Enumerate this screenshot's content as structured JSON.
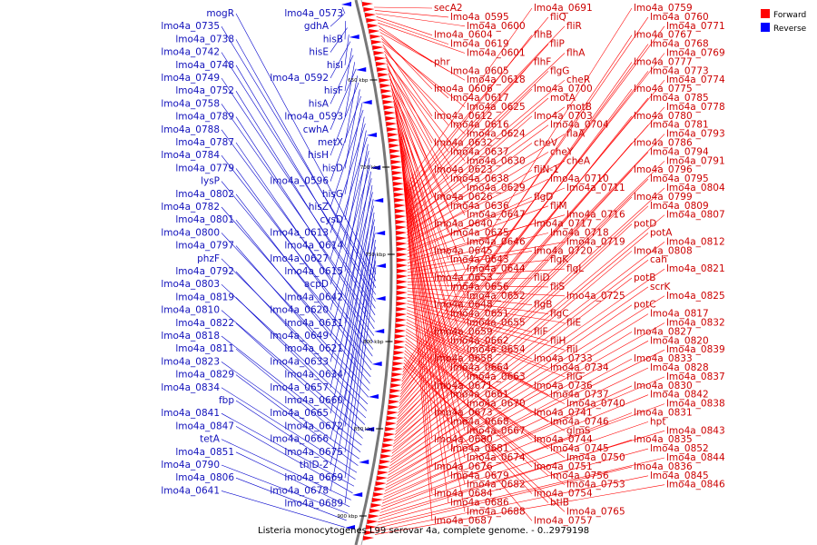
{
  "legend": [
    {
      "name": "Forward",
      "color": "#ff0000"
    },
    {
      "name": "Reverse",
      "color": "#0000ff"
    }
  ],
  "caption": "Listeria monocytogenes L99 serovar 4a, complete genome. - 0..2979198",
  "ticks": [
    "650 kbp",
    "700 kbp",
    "750 kbp",
    "800 kbp",
    "850 kbp",
    "900 kbp"
  ],
  "forward_labels": [
    "secA2",
    "lmo4a_0595",
    "lmo4a_0600",
    "lmo4a_0604",
    "lmo4a_0619",
    "lmo4a_0601",
    "phr",
    "lmo4a_0605",
    "lmo4a_0618",
    "lmo4a_0606",
    "lmo4a_0617",
    "lmo4a_0625",
    "lmo4a_0612",
    "lmo4a_0616",
    "lmo4a_0624",
    "lmo4a_0632",
    "lmo4a_0637",
    "lmo4a_0630",
    "lmo4a_0623",
    "lmo4a_0638",
    "lmo4a_0629",
    "lmo4a_0626",
    "lmo4a_0636",
    "lmo4a_0647",
    "lmo4a_0640",
    "lmo4a_0635",
    "lmo4a_0646",
    "lmo4a_0645",
    "lmo4a_0643",
    "lmo4a_0644",
    "lmo4a_0653",
    "lmo4a_0656",
    "lmo4a_0652",
    "lmo4a_0648",
    "lmo4a_0651",
    "lmo4a_0655",
    "lmo4a_0659",
    "lmo4a_0662",
    "lmo4a_0654",
    "lmo4a_0658",
    "lmo4a_0664",
    "lmo4a_0663",
    "lmo4a_0671",
    "lmo4a_0661",
    "lmo4a_0670",
    "lmo4a_0673",
    "lmo4a_0668",
    "lmo4a_0667",
    "lmo4a_0680",
    "lmo4a_0681",
    "lmo4a_0674",
    "lmo4a_0676",
    "lmo4a_0679",
    "lmo4a_0682",
    "lmo4a_0684",
    "lmo4a_0686",
    "lmo4a_0688",
    "lmo4a_0687",
    "lmo4a_0691",
    "fliQ",
    "fliR",
    "flhB",
    "fliP",
    "flhA",
    "flhF",
    "flgG",
    "cheR",
    "lmo4a_0700",
    "motA",
    "motB",
    "lmo4a_0703",
    "lmo4a_0704",
    "flaA",
    "cheV",
    "cheY",
    "cheA",
    "fliN-1",
    "lmo4a_0710",
    "lmo4a_0711",
    "flgD",
    "fliM",
    "lmo4a_0716",
    "lmo4a_0717",
    "lmo4a_0718",
    "lmo4a_0719",
    "lmo4a_0720",
    "flgK",
    "flgL",
    "fliD",
    "fliS",
    "lmo4a_0725",
    "flgB",
    "flgC",
    "fliE",
    "fliF",
    "fliH",
    "fliI",
    "lmo4a_0733",
    "lmo4a_0734",
    "fliG",
    "lmo4a_0736",
    "lmo4a_0737",
    "lmo4a_0740",
    "lmo4a_0741",
    "lmo4a_0746",
    "glmS",
    "lmo4a_0744",
    "lmo4a_0745",
    "lmo4a_0750",
    "lmo4a_0751",
    "lmo4a_0756",
    "lmo4a_0753",
    "lmo4a_0754",
    "btlB",
    "lmo4a_0765",
    "lmo4a_0757",
    "lmo4a_0759",
    "lmo4a_0760",
    "lmo4a_0771",
    "lmo4a_0767",
    "lmo4a_0768",
    "lmo4a_0769",
    "lmo4a_0777",
    "lmo4a_0773",
    "lmo4a_0774",
    "lmo4a_0775",
    "lmo4a_0785",
    "lmo4a_0778",
    "lmo4a_0780",
    "lmo4a_0781",
    "lmo4a_0793",
    "lmo4a_0786",
    "lmo4a_0794",
    "lmo4a_0791",
    "lmo4a_0796",
    "lmo4a_0795",
    "lmo4a_0804",
    "lmo4a_0799",
    "lmo4a_0809",
    "lmo4a_0807",
    "potD",
    "potA",
    "lmo4a_0812",
    "lmo4a_0808",
    "cah",
    "lmo4a_0821",
    "potB",
    "scrK",
    "lmo4a_0825",
    "potC",
    "lmo4a_0817",
    "lmo4a_0832",
    "lmo4a_0827",
    "lmo4a_0820",
    "lmo4a_0839",
    "lmo4a_0833",
    "lmo4a_0828",
    "lmo4a_0837",
    "lmo4a_0830",
    "lmo4a_0842",
    "lmo4a_0838",
    "lmo4a_0831",
    "hpt",
    "lmo4a_0843",
    "lmo4a_0835",
    "lmo4a_0852",
    "lmo4a_0844",
    "lmo4a_0836",
    "lmo4a_0845",
    "lmo4a_0846"
  ],
  "reverse_labels": [
    "lmo4a_0573",
    "gdhA",
    "hisB",
    "hisE",
    "hisI",
    "lmo4a_0592",
    "hisF",
    "hisA",
    "lmo4a_0593",
    "cwhA",
    "metX",
    "hisH",
    "hisD",
    "lmo4a_0596",
    "hisG",
    "hisZ",
    "cysD",
    "lmo4a_0613",
    "lmo4a_0614",
    "lmo4a_0627",
    "lmo4a_0615",
    "acpD",
    "lmo4a_0642",
    "lmo4a_0620",
    "lmo4a_0631",
    "lmo4a_0649",
    "lmo4a_0621",
    "lmo4a_0633",
    "lmo4a_0634",
    "lmo4a_0657",
    "lmo4a_0660",
    "lmo4a_0665",
    "lmo4a_0672",
    "lmo4a_0666",
    "lmo4a_0675",
    "thiD-2",
    "lmo4a_0669",
    "lmo4a_0678",
    "lmo4a_0689",
    "mogR",
    "lmo4a_0735",
    "lmo4a_0738",
    "lmo4a_0742",
    "lmo4a_0748",
    "lmo4a_0749",
    "lmo4a_0752",
    "lmo4a_0758",
    "lmo4a_0789",
    "lmo4a_0788",
    "lmo4a_0787",
    "lmo4a_0784",
    "lmo4a_0779",
    "lysP",
    "lmo4a_0802",
    "lmo4a_0782",
    "lmo4a_0801",
    "lmo4a_0800",
    "lmo4a_0797",
    "phzF",
    "lmo4a_0792",
    "lmo4a_0803",
    "lmo4a_0819",
    "lmo4a_0810",
    "lmo4a_0822",
    "lmo4a_0818",
    "lmo4a_0811",
    "lmo4a_0823",
    "lmo4a_0829",
    "lmo4a_0834",
    "fbp",
    "lmo4a_0841",
    "lmo4a_0847",
    "tetA",
    "lmo4a_0851",
    "lmo4a_0790",
    "lmo4a_0806",
    "lmo4a_0641"
  ]
}
